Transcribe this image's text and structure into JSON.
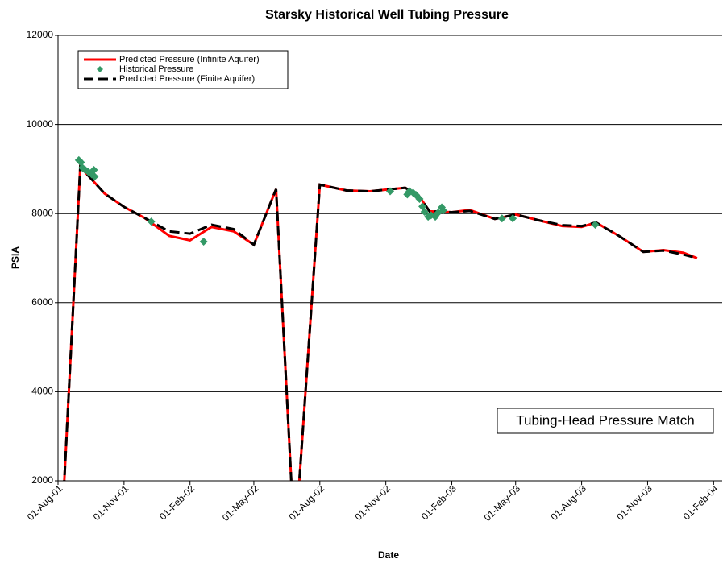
{
  "chart_data": {
    "type": "line",
    "title": "Starsky Historical Well Tubing Pressure",
    "x_label": "Date",
    "y_label": "PSIA",
    "annotation": "Tubing-Head Pressure Match",
    "legend": "upper left",
    "grid": true,
    "ylim": [
      2000,
      12000
    ],
    "yticks": [
      2000,
      4000,
      6000,
      8000,
      10000,
      12000
    ],
    "xlim": [
      "2001-08-01",
      "2004-02-13"
    ],
    "xticks": [
      {
        "value": "2001-08-01",
        "label": "01-Aug-01"
      },
      {
        "value": "2001-11-01",
        "label": "01-Nov-01"
      },
      {
        "value": "2002-02-01",
        "label": "01-Feb-02"
      },
      {
        "value": "2002-05-01",
        "label": "01-May-02"
      },
      {
        "value": "2002-08-01",
        "label": "01-Aug-02"
      },
      {
        "value": "2002-11-01",
        "label": "01-Nov-02"
      },
      {
        "value": "2003-02-01",
        "label": "01-Feb-03"
      },
      {
        "value": "2003-05-01",
        "label": "01-May-03"
      },
      {
        "value": "2003-08-01",
        "label": "01-Aug-03"
      },
      {
        "value": "2003-11-01",
        "label": "01-Nov-03"
      },
      {
        "value": "2004-02-01",
        "label": "01-Feb-04"
      }
    ],
    "series": [
      {
        "name": "Predicted Pressure (Infinite Aquifer)",
        "color": "#ff0000",
        "style": "solid",
        "x": [
          "2001-08-05",
          "2001-09-01",
          "2001-10-05",
          "2001-11-01",
          "2001-11-30",
          "2002-01-03",
          "2002-02-01",
          "2002-03-03",
          "2002-04-03",
          "2002-05-01",
          "2002-06-01",
          "2002-06-27",
          "2002-08-01",
          "2002-09-07",
          "2002-10-10",
          "2002-11-28",
          "2002-12-17",
          "2003-01-01",
          "2003-02-01",
          "2003-02-26",
          "2003-04-02",
          "2003-05-01",
          "2003-06-02",
          "2003-07-05",
          "2003-08-01",
          "2003-08-21",
          "2003-09-22",
          "2003-10-26",
          "2003-11-23",
          "2003-12-21",
          "2004-01-09"
        ],
        "values": [
          500,
          9050,
          8450,
          8150,
          7900,
          7500,
          7400,
          7700,
          7600,
          7300,
          8550,
          500,
          8650,
          8520,
          8500,
          8580,
          8400,
          8050,
          8030,
          8080,
          7880,
          7980,
          7850,
          7720,
          7700,
          7800,
          7500,
          7140,
          7180,
          7120,
          7000
        ]
      },
      {
        "name": "Historical Pressure",
        "color": "#339966",
        "style": "marker",
        "x": [
          "2001-08-30",
          "2001-09-02",
          "2001-09-04",
          "2001-09-08",
          "2001-09-12",
          "2001-09-17",
          "2001-09-20",
          "2001-09-21",
          "2001-12-09",
          "2002-02-20",
          "2002-11-07",
          "2002-12-01",
          "2002-12-04",
          "2002-12-09",
          "2002-12-13",
          "2002-12-18",
          "2002-12-22",
          "2002-12-25",
          "2002-12-30",
          "2003-01-03",
          "2003-01-09",
          "2003-01-13",
          "2003-01-18",
          "2003-01-20",
          "2003-04-12",
          "2003-04-27",
          "2003-08-20"
        ],
        "values": [
          9200,
          9150,
          9030,
          8980,
          8940,
          8880,
          8980,
          8830,
          7820,
          7370,
          8500,
          8430,
          8500,
          8470,
          8420,
          8330,
          8160,
          8040,
          7930,
          7960,
          7930,
          8020,
          8140,
          8070,
          7890,
          7890,
          7750
        ]
      },
      {
        "name": "Predicted Pressure (Finite Aquifer)",
        "color": "#000000",
        "style": "dashed",
        "x": [
          "2001-08-05",
          "2001-09-01",
          "2001-10-05",
          "2001-11-01",
          "2001-11-30",
          "2002-01-03",
          "2002-02-01",
          "2002-03-03",
          "2002-04-03",
          "2002-05-01",
          "2002-06-01",
          "2002-06-27",
          "2002-08-01",
          "2002-09-07",
          "2002-10-10",
          "2002-11-28",
          "2002-12-17",
          "2003-01-01",
          "2003-02-01",
          "2003-02-26",
          "2003-04-02",
          "2003-05-01",
          "2003-06-02",
          "2003-07-05",
          "2003-08-01",
          "2003-08-21",
          "2003-09-22",
          "2003-10-26",
          "2003-11-23",
          "2003-12-21",
          "2004-01-09"
        ],
        "values": [
          500,
          9050,
          8450,
          8150,
          7900,
          7600,
          7550,
          7750,
          7650,
          7300,
          8550,
          500,
          8650,
          8520,
          8500,
          8580,
          8400,
          8050,
          8030,
          8060,
          7880,
          7980,
          7850,
          7740,
          7720,
          7800,
          7500,
          7140,
          7170,
          7080,
          7000
        ]
      }
    ]
  }
}
